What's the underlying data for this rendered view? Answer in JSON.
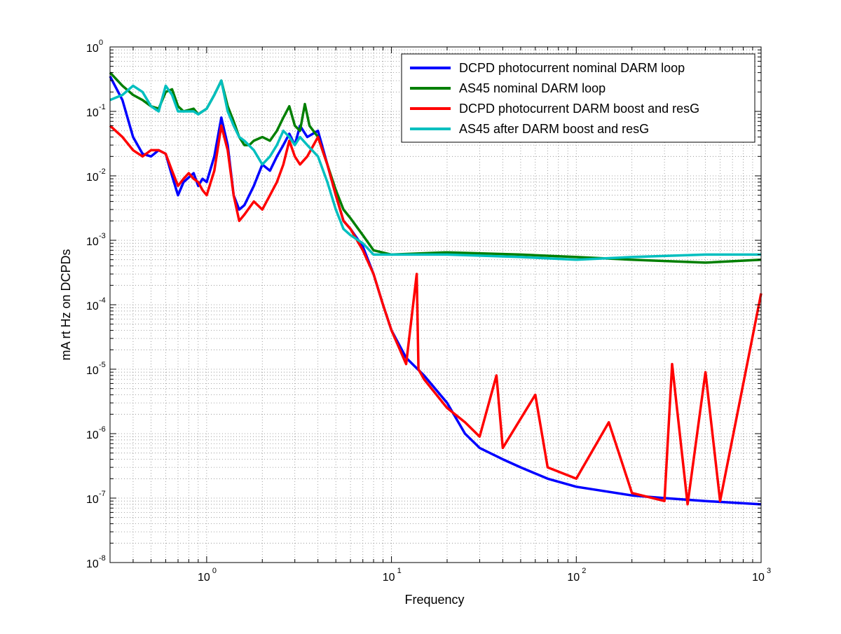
{
  "chart_data": {
    "type": "line",
    "title": "",
    "xlabel": "Frequency",
    "ylabel": "mA rt Hz on DCPDs",
    "x_scale": "log",
    "y_scale": "log",
    "xlim": [
      0.3,
      1000
    ],
    "ylim": [
      1e-08,
      1
    ],
    "grid": true,
    "legend_position": "top-right",
    "x_ticks": [
      {
        "value": 1,
        "base": "10",
        "exp": "0"
      },
      {
        "value": 10,
        "base": "10",
        "exp": "1"
      },
      {
        "value": 100,
        "base": "10",
        "exp": "2"
      },
      {
        "value": 1000,
        "base": "10",
        "exp": "3"
      }
    ],
    "y_ticks": [
      {
        "value": 1,
        "base": "10",
        "exp": "0"
      },
      {
        "value": 0.1,
        "base": "10",
        "exp": "-1"
      },
      {
        "value": 0.01,
        "base": "10",
        "exp": "-2"
      },
      {
        "value": 0.001,
        "base": "10",
        "exp": "-3"
      },
      {
        "value": 0.0001,
        "base": "10",
        "exp": "-4"
      },
      {
        "value": 1e-05,
        "base": "10",
        "exp": "-5"
      },
      {
        "value": 1e-06,
        "base": "10",
        "exp": "-6"
      },
      {
        "value": 1e-07,
        "base": "10",
        "exp": "-7"
      },
      {
        "value": 1e-08,
        "base": "10",
        "exp": "-8"
      }
    ],
    "series": [
      {
        "name": "DCPD photocurrent nominal DARM loop",
        "color": "#0000ff",
        "points": [
          [
            0.3,
            0.35
          ],
          [
            0.35,
            0.15
          ],
          [
            0.4,
            0.04
          ],
          [
            0.45,
            0.022
          ],
          [
            0.5,
            0.02
          ],
          [
            0.55,
            0.025
          ],
          [
            0.6,
            0.022
          ],
          [
            0.65,
            0.01
          ],
          [
            0.7,
            0.005
          ],
          [
            0.75,
            0.008
          ],
          [
            0.85,
            0.011
          ],
          [
            0.9,
            0.007
          ],
          [
            0.95,
            0.009
          ],
          [
            1.0,
            0.008
          ],
          [
            1.1,
            0.02
          ],
          [
            1.2,
            0.08
          ],
          [
            1.3,
            0.03
          ],
          [
            1.4,
            0.005
          ],
          [
            1.5,
            0.003
          ],
          [
            1.6,
            0.0035
          ],
          [
            1.8,
            0.007
          ],
          [
            2.0,
            0.015
          ],
          [
            2.2,
            0.012
          ],
          [
            2.4,
            0.02
          ],
          [
            2.6,
            0.03
          ],
          [
            2.8,
            0.045
          ],
          [
            3.0,
            0.03
          ],
          [
            3.2,
            0.06
          ],
          [
            3.5,
            0.04
          ],
          [
            4.0,
            0.05
          ],
          [
            4.5,
            0.015
          ],
          [
            5.0,
            0.005
          ],
          [
            5.5,
            0.002
          ],
          [
            6.0,
            0.0015
          ],
          [
            7.0,
            0.0008
          ],
          [
            8.0,
            0.0003
          ],
          [
            9.0,
            0.0001
          ],
          [
            10,
            4e-05
          ],
          [
            12,
            1.5e-05
          ],
          [
            15,
            8e-06
          ],
          [
            20,
            3e-06
          ],
          [
            25,
            1e-06
          ],
          [
            30,
            6e-07
          ],
          [
            40,
            4e-07
          ],
          [
            50,
            3e-07
          ],
          [
            70,
            2e-07
          ],
          [
            100,
            1.5e-07
          ],
          [
            200,
            1.1e-07
          ],
          [
            300,
            1e-07
          ],
          [
            500,
            9e-08
          ],
          [
            1000,
            8e-08
          ]
        ]
      },
      {
        "name": "AS45 nominal DARM loop",
        "color": "#007f00",
        "points": [
          [
            0.3,
            0.4
          ],
          [
            0.35,
            0.25
          ],
          [
            0.4,
            0.18
          ],
          [
            0.45,
            0.15
          ],
          [
            0.5,
            0.12
          ],
          [
            0.55,
            0.11
          ],
          [
            0.6,
            0.2
          ],
          [
            0.65,
            0.22
          ],
          [
            0.7,
            0.12
          ],
          [
            0.75,
            0.1
          ],
          [
            0.85,
            0.11
          ],
          [
            0.9,
            0.09
          ],
          [
            0.95,
            0.1
          ],
          [
            1.0,
            0.11
          ],
          [
            1.1,
            0.18
          ],
          [
            1.2,
            0.3
          ],
          [
            1.3,
            0.12
          ],
          [
            1.4,
            0.07
          ],
          [
            1.5,
            0.04
          ],
          [
            1.6,
            0.03
          ],
          [
            1.7,
            0.03
          ],
          [
            1.8,
            0.035
          ],
          [
            2.0,
            0.04
          ],
          [
            2.2,
            0.035
          ],
          [
            2.4,
            0.05
          ],
          [
            2.6,
            0.08
          ],
          [
            2.8,
            0.12
          ],
          [
            3.0,
            0.06
          ],
          [
            3.2,
            0.05
          ],
          [
            3.4,
            0.13
          ],
          [
            3.6,
            0.06
          ],
          [
            4.0,
            0.04
          ],
          [
            4.5,
            0.015
          ],
          [
            5.0,
            0.006
          ],
          [
            5.5,
            0.003
          ],
          [
            6.0,
            0.0022
          ],
          [
            7.0,
            0.0012
          ],
          [
            8.0,
            0.0007
          ],
          [
            10,
            0.0006
          ],
          [
            20,
            0.00065
          ],
          [
            50,
            0.0006
          ],
          [
            100,
            0.00055
          ],
          [
            200,
            0.0005
          ],
          [
            500,
            0.00045
          ],
          [
            1000,
            0.0005
          ]
        ]
      },
      {
        "name": "DCPD photocurrent DARM boost and resG",
        "color": "#ff0000",
        "points": [
          [
            0.3,
            0.06
          ],
          [
            0.35,
            0.04
          ],
          [
            0.4,
            0.025
          ],
          [
            0.45,
            0.02
          ],
          [
            0.5,
            0.025
          ],
          [
            0.55,
            0.025
          ],
          [
            0.6,
            0.022
          ],
          [
            0.65,
            0.012
          ],
          [
            0.7,
            0.007
          ],
          [
            0.75,
            0.009
          ],
          [
            0.8,
            0.011
          ],
          [
            0.85,
            0.009
          ],
          [
            0.9,
            0.008
          ],
          [
            0.95,
            0.006
          ],
          [
            1.0,
            0.005
          ],
          [
            1.1,
            0.012
          ],
          [
            1.2,
            0.06
          ],
          [
            1.3,
            0.025
          ],
          [
            1.4,
            0.005
          ],
          [
            1.5,
            0.002
          ],
          [
            1.6,
            0.0025
          ],
          [
            1.8,
            0.004
          ],
          [
            2.0,
            0.003
          ],
          [
            2.2,
            0.005
          ],
          [
            2.4,
            0.008
          ],
          [
            2.6,
            0.015
          ],
          [
            2.8,
            0.035
          ],
          [
            3.0,
            0.02
          ],
          [
            3.2,
            0.015
          ],
          [
            3.5,
            0.02
          ],
          [
            4.0,
            0.04
          ],
          [
            4.5,
            0.015
          ],
          [
            5.0,
            0.005
          ],
          [
            5.5,
            0.002
          ],
          [
            6.0,
            0.0015
          ],
          [
            7.0,
            0.0007
          ],
          [
            8.0,
            0.0003
          ],
          [
            9.0,
            0.0001
          ],
          [
            10,
            4e-05
          ],
          [
            12,
            1.2e-05
          ],
          [
            13.7,
            0.0003
          ],
          [
            14,
            1e-05
          ],
          [
            15,
            7e-06
          ],
          [
            20,
            2.5e-06
          ],
          [
            25,
            1.5e-06
          ],
          [
            30,
            9e-07
          ],
          [
            37,
            8e-06
          ],
          [
            40,
            6e-07
          ],
          [
            60,
            4e-06
          ],
          [
            70,
            3e-07
          ],
          [
            100,
            2e-07
          ],
          [
            150,
            1.5e-06
          ],
          [
            200,
            1.2e-07
          ],
          [
            300,
            9e-08
          ],
          [
            330,
            1.2e-05
          ],
          [
            400,
            8e-08
          ],
          [
            500,
            9e-06
          ],
          [
            600,
            9e-08
          ],
          [
            1000,
            0.00015
          ]
        ]
      },
      {
        "name": "AS45 after DARM boost and resG",
        "color": "#00bfbf",
        "points": [
          [
            0.3,
            0.15
          ],
          [
            0.35,
            0.18
          ],
          [
            0.4,
            0.25
          ],
          [
            0.45,
            0.2
          ],
          [
            0.5,
            0.12
          ],
          [
            0.55,
            0.1
          ],
          [
            0.6,
            0.25
          ],
          [
            0.65,
            0.18
          ],
          [
            0.7,
            0.1
          ],
          [
            0.75,
            0.1
          ],
          [
            0.85,
            0.1
          ],
          [
            0.9,
            0.09
          ],
          [
            0.95,
            0.1
          ],
          [
            1.0,
            0.11
          ],
          [
            1.1,
            0.18
          ],
          [
            1.2,
            0.3
          ],
          [
            1.3,
            0.1
          ],
          [
            1.4,
            0.06
          ],
          [
            1.5,
            0.04
          ],
          [
            1.6,
            0.035
          ],
          [
            1.8,
            0.025
          ],
          [
            2.0,
            0.015
          ],
          [
            2.2,
            0.02
          ],
          [
            2.4,
            0.03
          ],
          [
            2.6,
            0.05
          ],
          [
            2.8,
            0.04
          ],
          [
            3.0,
            0.03
          ],
          [
            3.2,
            0.04
          ],
          [
            3.5,
            0.03
          ],
          [
            4.0,
            0.02
          ],
          [
            4.5,
            0.008
          ],
          [
            5.0,
            0.003
          ],
          [
            5.5,
            0.0015
          ],
          [
            6.0,
            0.0012
          ],
          [
            7.0,
            0.0009
          ],
          [
            8.0,
            0.0006
          ],
          [
            10,
            0.0006
          ],
          [
            20,
            0.0006
          ],
          [
            50,
            0.00055
          ],
          [
            100,
            0.0005
          ],
          [
            200,
            0.00055
          ],
          [
            500,
            0.0006
          ],
          [
            1000,
            0.0006
          ]
        ]
      }
    ]
  }
}
